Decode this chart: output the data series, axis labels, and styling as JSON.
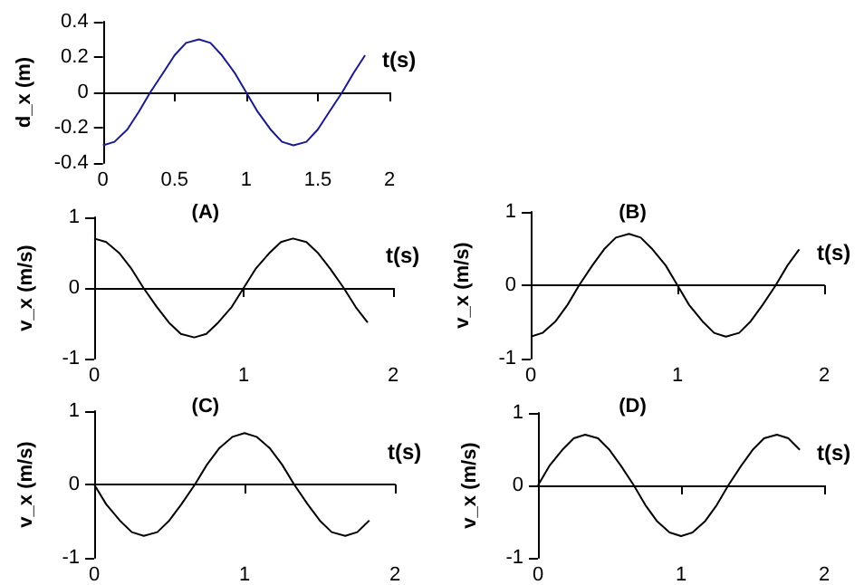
{
  "chart_data": [
    {
      "type": "line",
      "xlabel": "t(s)",
      "ylabel": "d_x (m)",
      "marker": "none",
      "x": [
        0,
        0.08,
        0.17,
        0.25,
        0.33,
        0.42,
        0.5,
        0.58,
        0.67,
        0.75,
        0.83,
        0.92,
        1,
        1.08,
        1.17,
        1.25,
        1.33,
        1.42,
        1.5,
        1.58,
        1.67,
        1.75,
        1.83
      ],
      "series": [
        {
          "color": "#1a1a8c",
          "values": [
            -0.3,
            -0.28,
            -0.21,
            -0.11,
            0,
            0.11,
            0.21,
            0.28,
            0.3,
            0.28,
            0.21,
            0.11,
            0,
            -0.11,
            -0.21,
            -0.28,
            -0.3,
            -0.28,
            -0.21,
            -0.11,
            0,
            0.11,
            0.21
          ]
        }
      ],
      "xlim": [
        0,
        2
      ],
      "xticks": [
        0,
        0.5,
        1,
        1.5,
        2
      ],
      "ylim": [
        -0.4,
        0.4
      ],
      "yticks": [
        -0.4,
        -0.2,
        0,
        0.2,
        0.4
      ]
    },
    {
      "type": "line",
      "title": "(A)",
      "xlabel": "t(s)",
      "ylabel": "v_x (m/s)",
      "marker": "none",
      "x": [
        0,
        0.08,
        0.17,
        0.25,
        0.33,
        0.42,
        0.5,
        0.58,
        0.67,
        0.75,
        0.83,
        0.92,
        1,
        1.08,
        1.17,
        1.25,
        1.33,
        1.42,
        1.5,
        1.58,
        1.67,
        1.75,
        1.83
      ],
      "series": [
        {
          "color": "#000000",
          "values": [
            0.7,
            0.65,
            0.49,
            0.27,
            0,
            -0.27,
            -0.49,
            -0.65,
            -0.7,
            -0.65,
            -0.49,
            -0.27,
            0,
            0.27,
            0.49,
            0.65,
            0.7,
            0.65,
            0.49,
            0.27,
            0,
            -0.27,
            -0.49
          ]
        }
      ],
      "xlim": [
        0,
        2
      ],
      "xticks": [
        0,
        1,
        2
      ],
      "ylim": [
        -1,
        1
      ],
      "yticks": [
        -1,
        0,
        1
      ]
    },
    {
      "type": "line",
      "title": "(B)",
      "xlabel": "t(s)",
      "ylabel": "v_x (m/s)",
      "marker": "none",
      "x": [
        0,
        0.08,
        0.17,
        0.25,
        0.33,
        0.42,
        0.5,
        0.58,
        0.67,
        0.75,
        0.83,
        0.92,
        1,
        1.08,
        1.17,
        1.25,
        1.33,
        1.42,
        1.5,
        1.58,
        1.67,
        1.75,
        1.83
      ],
      "series": [
        {
          "color": "#000000",
          "values": [
            -0.7,
            -0.65,
            -0.49,
            -0.27,
            0,
            0.27,
            0.49,
            0.65,
            0.7,
            0.65,
            0.49,
            0.27,
            0,
            -0.27,
            -0.49,
            -0.65,
            -0.7,
            -0.65,
            -0.49,
            -0.27,
            0,
            0.27,
            0.49
          ]
        }
      ],
      "xlim": [
        0,
        2
      ],
      "xticks": [
        0,
        1,
        2
      ],
      "ylim": [
        -1,
        1
      ],
      "yticks": [
        -1,
        0,
        1
      ]
    },
    {
      "type": "line",
      "title": "(C)",
      "xlabel": "t(s)",
      "ylabel": "v_x (m/s)",
      "marker": "none",
      "x": [
        0,
        0.08,
        0.17,
        0.25,
        0.33,
        0.42,
        0.5,
        0.58,
        0.67,
        0.75,
        0.83,
        0.92,
        1,
        1.08,
        1.17,
        1.25,
        1.33,
        1.42,
        1.5,
        1.58,
        1.67,
        1.75,
        1.83
      ],
      "series": [
        {
          "color": "#000000",
          "values": [
            0,
            -0.27,
            -0.49,
            -0.65,
            -0.7,
            -0.65,
            -0.49,
            -0.27,
            0,
            0.27,
            0.49,
            0.65,
            0.7,
            0.65,
            0.49,
            0.27,
            0,
            -0.27,
            -0.49,
            -0.65,
            -0.7,
            -0.65,
            -0.49
          ]
        }
      ],
      "xlim": [
        0,
        2
      ],
      "xticks": [
        0,
        1,
        2
      ],
      "ylim": [
        -1,
        1
      ],
      "yticks": [
        -1,
        0,
        1
      ]
    },
    {
      "type": "line",
      "title": "(D)",
      "xlabel": "t(s)",
      "ylabel": "v_x (m/s)",
      "marker": "none",
      "x": [
        0,
        0.08,
        0.17,
        0.25,
        0.33,
        0.42,
        0.5,
        0.58,
        0.67,
        0.75,
        0.83,
        0.92,
        1,
        1.08,
        1.17,
        1.25,
        1.33,
        1.42,
        1.5,
        1.58,
        1.67,
        1.75,
        1.83
      ],
      "series": [
        {
          "color": "#000000",
          "values": [
            0,
            0.27,
            0.49,
            0.65,
            0.7,
            0.65,
            0.49,
            0.27,
            0,
            -0.27,
            -0.49,
            -0.65,
            -0.7,
            -0.65,
            -0.49,
            -0.27,
            0,
            0.27,
            0.49,
            0.65,
            0.7,
            0.65,
            0.49
          ]
        }
      ],
      "xlim": [
        0,
        2
      ],
      "xticks": [
        0,
        1,
        2
      ],
      "ylim": [
        -1,
        1
      ],
      "yticks": [
        -1,
        0,
        1
      ]
    }
  ]
}
